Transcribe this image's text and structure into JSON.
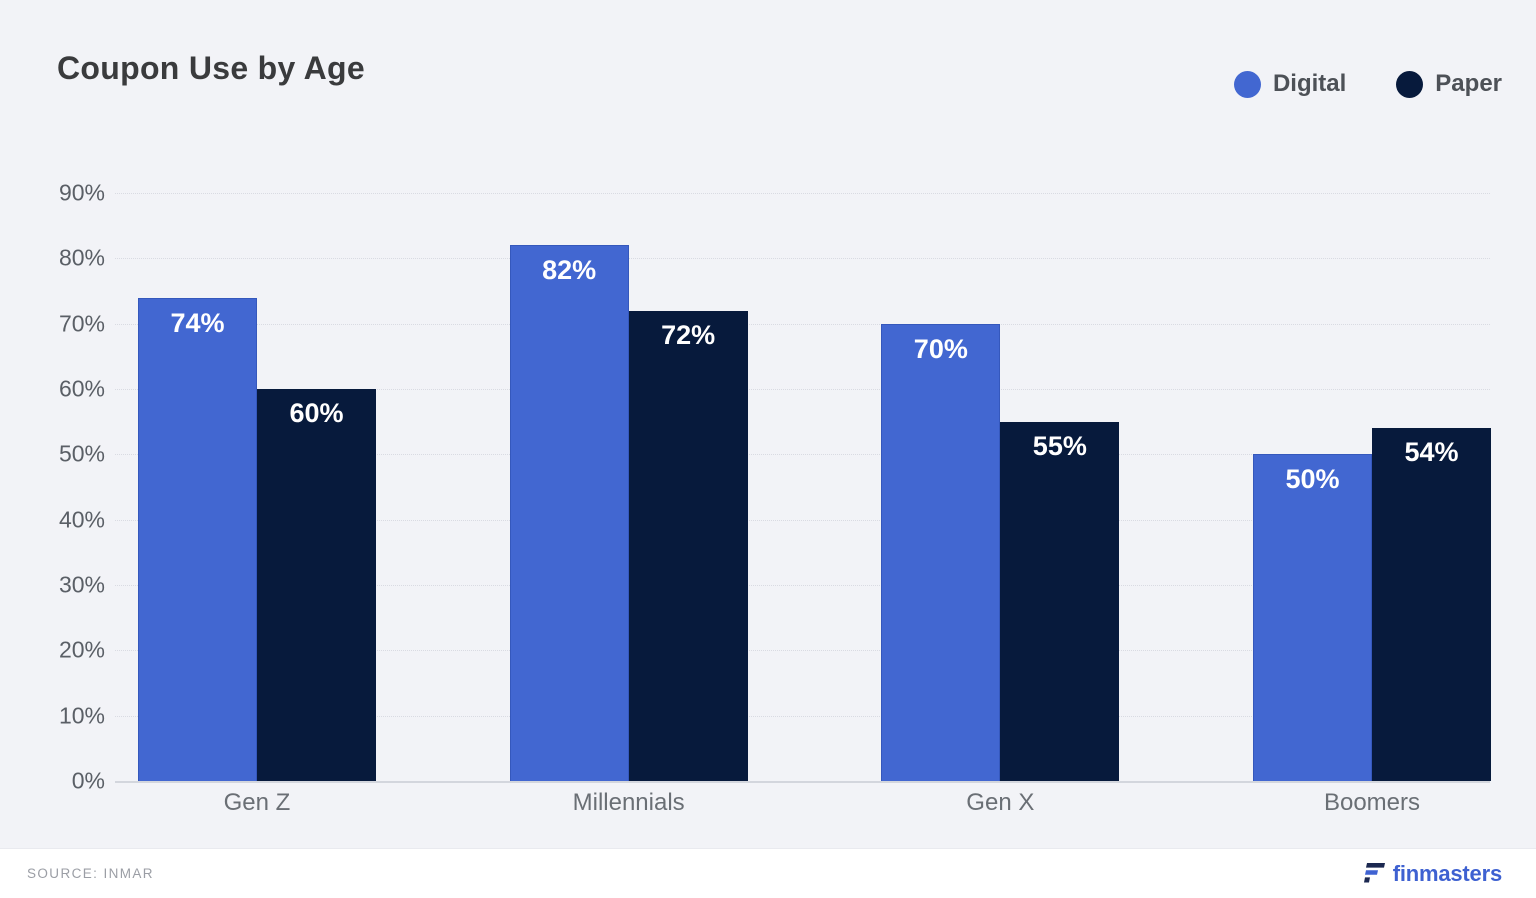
{
  "title": "Coupon Use by Age",
  "legend": [
    {
      "label": "Digital",
      "color": "#4267d1"
    },
    {
      "label": "Paper",
      "color": "#071a3c"
    }
  ],
  "chart_data": {
    "type": "bar",
    "title": "Coupon Use by Age",
    "categories": [
      "Gen Z",
      "Millennials",
      "Gen X",
      "Boomers"
    ],
    "series": [
      {
        "name": "Digital",
        "color": "#4267d1",
        "values": [
          74,
          82,
          70,
          50
        ]
      },
      {
        "name": "Paper",
        "color": "#071a3c",
        "values": [
          60,
          72,
          55,
          54
        ]
      }
    ],
    "value_suffix": "%",
    "xlabel": "",
    "ylabel": "",
    "ylim": [
      0,
      90
    ],
    "ytick_step": 10,
    "ytick_suffix": "%",
    "grid": true,
    "gridline_style": "dotted",
    "legend_position": "top-right",
    "value_labels": "inside-top",
    "background_color": "#f2f3f7"
  },
  "footer": {
    "source": "SOURCE: INMAR",
    "brand": "finmasters"
  },
  "brand_colors": {
    "logo_dark": "#1b2850",
    "logo_blue": "#3f62d2"
  }
}
